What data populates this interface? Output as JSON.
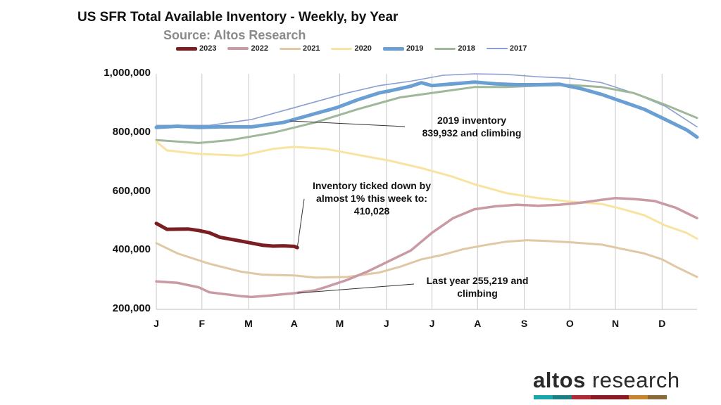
{
  "chart_data": {
    "type": "line",
    "title": "US SFR Total Available Inventory - Weekly, by Year",
    "subtitle": "Source: Altos Research",
    "xlabel": "",
    "ylabel": "",
    "ylim": [
      200000,
      1000000
    ],
    "yticks": [
      200000,
      400000,
      600000,
      800000,
      1000000
    ],
    "ytick_labels": [
      "200,000",
      "400,000",
      "600,000",
      "800,000",
      "1,000,000"
    ],
    "x_unit": "week",
    "xlim": [
      1,
      52
    ],
    "month_labels": [
      "J",
      "F",
      "M",
      "A",
      "M",
      "J",
      "J",
      "A",
      "S",
      "O",
      "N",
      "D"
    ],
    "month_weeks": [
      1,
      5.3,
      9.7,
      14,
      18.3,
      22.7,
      27,
      31.3,
      35.7,
      40,
      44.3,
      48.7
    ],
    "grid": "vertical",
    "legend_position": "top",
    "series": [
      {
        "name": "2017",
        "color": "#8b9fd0",
        "width": 1.6,
        "points": [
          [
            1,
            825000
          ],
          [
            6,
            825000
          ],
          [
            10,
            845000
          ],
          [
            13,
            875000
          ],
          [
            16,
            905000
          ],
          [
            19,
            935000
          ],
          [
            22,
            960000
          ],
          [
            25,
            975000
          ],
          [
            28,
            995000
          ],
          [
            31,
            1000000
          ],
          [
            34,
            998000
          ],
          [
            37,
            990000
          ],
          [
            40,
            985000
          ],
          [
            43,
            970000
          ],
          [
            46,
            935000
          ],
          [
            49,
            890000
          ],
          [
            52,
            820000
          ]
        ]
      },
      {
        "name": "2018",
        "color": "#9fb89a",
        "width": 3,
        "points": [
          [
            1,
            775000
          ],
          [
            5,
            765000
          ],
          [
            8,
            775000
          ],
          [
            12,
            800000
          ],
          [
            16,
            835000
          ],
          [
            20,
            880000
          ],
          [
            24,
            920000
          ],
          [
            28,
            940000
          ],
          [
            31,
            955000
          ],
          [
            34,
            955000
          ],
          [
            37,
            960000
          ],
          [
            40,
            962000
          ],
          [
            43,
            955000
          ],
          [
            46,
            935000
          ],
          [
            49,
            895000
          ],
          [
            52,
            850000
          ]
        ]
      },
      {
        "name": "2019",
        "color": "#6a9fd4",
        "width": 5,
        "points": [
          [
            1,
            818000
          ],
          [
            3,
            822000
          ],
          [
            5,
            818000
          ],
          [
            7,
            820000
          ],
          [
            10,
            820000
          ],
          [
            13,
            835000
          ],
          [
            16,
            865000
          ],
          [
            18,
            885000
          ],
          [
            20,
            912000
          ],
          [
            22,
            935000
          ],
          [
            23,
            942000
          ],
          [
            25,
            958000
          ],
          [
            26,
            970000
          ],
          [
            27,
            960000
          ],
          [
            29,
            966000
          ],
          [
            31,
            972000
          ],
          [
            33,
            966000
          ],
          [
            35,
            963000
          ],
          [
            37,
            963000
          ],
          [
            39,
            965000
          ],
          [
            41,
            950000
          ],
          [
            43,
            930000
          ],
          [
            45,
            905000
          ],
          [
            47,
            880000
          ],
          [
            49,
            845000
          ],
          [
            51,
            810000
          ],
          [
            52,
            785000
          ]
        ]
      },
      {
        "name": "2020",
        "color": "#f9e3a0",
        "width": 3,
        "points": [
          [
            1,
            770000
          ],
          [
            2,
            740000
          ],
          [
            5,
            728000
          ],
          [
            9,
            722000
          ],
          [
            12,
            745000
          ],
          [
            14,
            752000
          ],
          [
            17,
            745000
          ],
          [
            20,
            725000
          ],
          [
            23,
            705000
          ],
          [
            26,
            680000
          ],
          [
            29,
            650000
          ],
          [
            31,
            625000
          ],
          [
            34,
            595000
          ],
          [
            37,
            578000
          ],
          [
            40,
            566000
          ],
          [
            43,
            558000
          ],
          [
            45,
            540000
          ],
          [
            47,
            520000
          ],
          [
            49,
            485000
          ],
          [
            51,
            460000
          ],
          [
            52,
            440000
          ]
        ]
      },
      {
        "name": "2021",
        "color": "#e0c8a4",
        "width": 3,
        "points": [
          [
            1,
            425000
          ],
          [
            3,
            390000
          ],
          [
            6,
            355000
          ],
          [
            9,
            328000
          ],
          [
            11,
            318000
          ],
          [
            14,
            315000
          ],
          [
            16,
            308000
          ],
          [
            19,
            310000
          ],
          [
            22,
            325000
          ],
          [
            24,
            345000
          ],
          [
            26,
            370000
          ],
          [
            28,
            385000
          ],
          [
            30,
            405000
          ],
          [
            32,
            418000
          ],
          [
            34,
            430000
          ],
          [
            36,
            435000
          ],
          [
            38,
            432000
          ],
          [
            40,
            428000
          ],
          [
            43,
            420000
          ],
          [
            45,
            405000
          ],
          [
            47,
            390000
          ],
          [
            48.7,
            370000
          ],
          [
            50,
            345000
          ],
          [
            52,
            310000
          ]
        ]
      },
      {
        "name": "2022",
        "color": "#c99aa4",
        "width": 3.5,
        "points": [
          [
            1,
            295000
          ],
          [
            3,
            290000
          ],
          [
            5,
            275000
          ],
          [
            6,
            258000
          ],
          [
            9,
            245000
          ],
          [
            10,
            242000
          ],
          [
            12,
            248000
          ],
          [
            14,
            255000
          ],
          [
            16,
            265000
          ],
          [
            17,
            276000
          ],
          [
            19,
            300000
          ],
          [
            21,
            330000
          ],
          [
            23,
            365000
          ],
          [
            25,
            400000
          ],
          [
            27,
            460000
          ],
          [
            29,
            510000
          ],
          [
            31,
            540000
          ],
          [
            33,
            550000
          ],
          [
            35,
            555000
          ],
          [
            37,
            552000
          ],
          [
            39,
            555000
          ],
          [
            41,
            562000
          ],
          [
            43,
            572000
          ],
          [
            44.3,
            578000
          ],
          [
            46,
            575000
          ],
          [
            48,
            568000
          ],
          [
            50,
            545000
          ],
          [
            52,
            510000
          ]
        ]
      },
      {
        "name": "2023",
        "color": "#7b1e22",
        "width": 5,
        "points": [
          [
            1,
            492000
          ],
          [
            2,
            472000
          ],
          [
            4,
            473000
          ],
          [
            5,
            468000
          ],
          [
            6,
            460000
          ],
          [
            7,
            445000
          ],
          [
            9,
            432000
          ],
          [
            10,
            425000
          ],
          [
            11,
            418000
          ],
          [
            12,
            415000
          ],
          [
            13,
            416000
          ],
          [
            14,
            414000
          ],
          [
            14.3,
            410028
          ]
        ]
      }
    ],
    "annotations": [
      {
        "lines": [
          "2019 inventory",
          "839,932 and climbing"
        ],
        "target": [
          13.6,
          839932
        ]
      },
      {
        "lines": [
          "Inventory ticked down by",
          "almost 1% this week to:",
          "410,028"
        ],
        "target": [
          14.3,
          410028
        ]
      },
      {
        "lines": [
          "Last year 255,219 and",
          "climbing"
        ],
        "target": [
          14.3,
          255219
        ]
      }
    ]
  },
  "brand": {
    "word1": "altos",
    "word2": " research",
    "bar_colors": [
      "#1aa6a6",
      "#1e7f86",
      "#b02a35",
      "#8a1a25",
      "#8b1a24",
      "#c5862f",
      "#8a6a3a"
    ]
  }
}
